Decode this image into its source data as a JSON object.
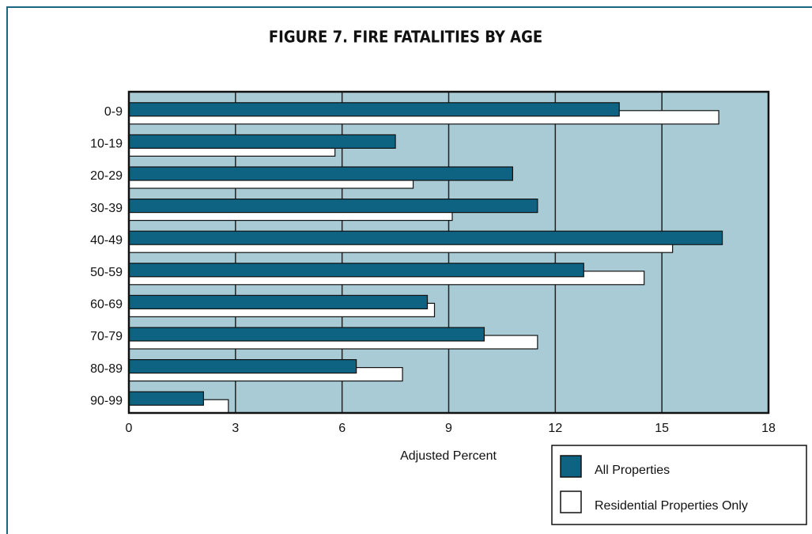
{
  "chart_data": {
    "type": "bar",
    "orientation": "horizontal",
    "title": "FIGURE 7. FIRE FATALITIES BY AGE",
    "x_label": "Adjusted Percent",
    "categories": [
      "0-9",
      "10-19",
      "20-29",
      "30-39",
      "40-49",
      "50-59",
      "60-69",
      "70-79",
      "80-89",
      "90-99"
    ],
    "series": [
      {
        "name": "All Properties",
        "color": "#0d6381",
        "values": [
          13.8,
          7.5,
          10.8,
          11.5,
          16.7,
          12.8,
          8.4,
          10.0,
          6.4,
          2.1
        ]
      },
      {
        "name": "Residential Properties Only",
        "color": "#ffffff",
        "values": [
          16.6,
          5.8,
          8.0,
          9.1,
          15.3,
          14.5,
          8.6,
          11.5,
          7.7,
          2.8
        ]
      }
    ],
    "xlim": [
      0,
      18
    ],
    "xticks": [
      0,
      3,
      6,
      9,
      12,
      15,
      18
    ],
    "grid": true,
    "plot_background": "#a8cbd6"
  }
}
